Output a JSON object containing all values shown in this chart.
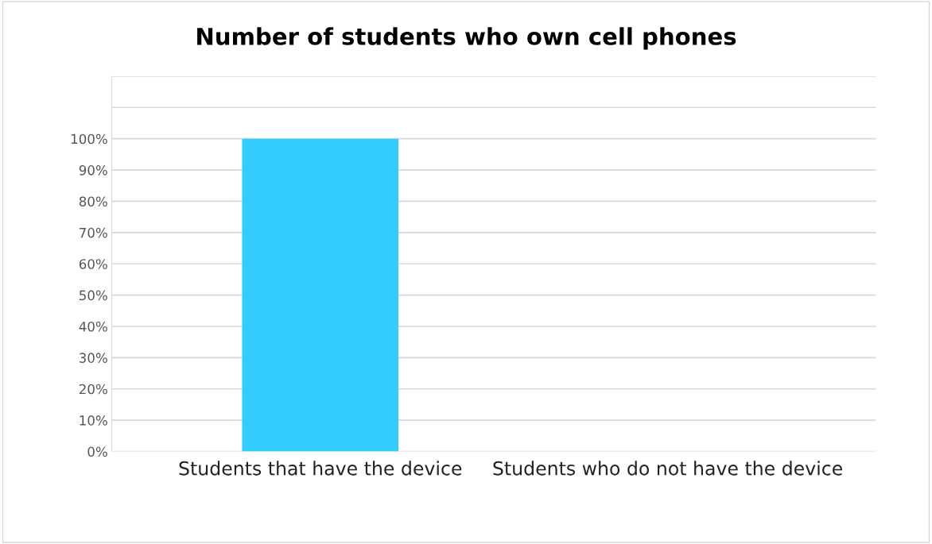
{
  "chart_data": {
    "type": "bar",
    "title": "Number of students who own cell phones",
    "categories": [
      "Students that have the device",
      "Students who do not have the device"
    ],
    "values": [
      100,
      0
    ],
    "colors": [
      "#33ccff",
      "#b8846a"
    ],
    "ylim": [
      0,
      120
    ],
    "yticks": [
      {
        "value": 0,
        "label": "0%"
      },
      {
        "value": 10,
        "label": "10%"
      },
      {
        "value": 20,
        "label": "20%"
      },
      {
        "value": 30,
        "label": "30%"
      },
      {
        "value": 40,
        "label": "40%"
      },
      {
        "value": 50,
        "label": "50%"
      },
      {
        "value": 60,
        "label": "60%"
      },
      {
        "value": 70,
        "label": "70%"
      },
      {
        "value": 80,
        "label": "80%"
      },
      {
        "value": 90,
        "label": "90%"
      },
      {
        "value": 100,
        "label": "100%"
      },
      {
        "value": 110,
        "label": null
      },
      {
        "value": 120,
        "label": null
      }
    ],
    "grid": "y"
  }
}
